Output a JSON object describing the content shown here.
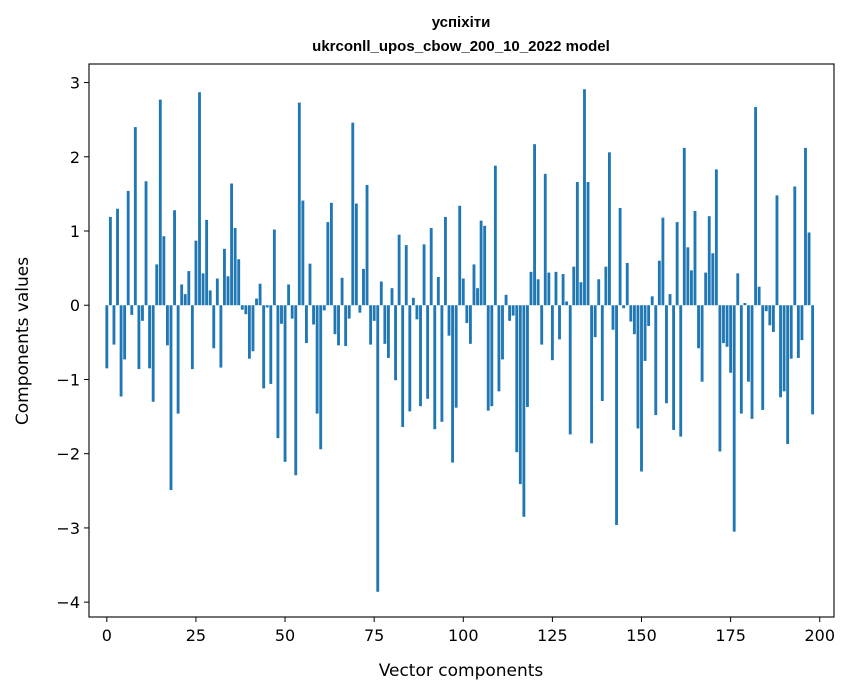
{
  "chart_data": {
    "type": "bar",
    "title": "успіхіти",
    "subtitle": "ukrconll_upos_cbow_200_10_2022 model",
    "xlabel": "Vector components",
    "ylabel": "Components values",
    "xlim": [
      -5,
      204
    ],
    "ylim": [
      -4.2,
      3.25
    ],
    "xticks": [
      0,
      25,
      50,
      75,
      100,
      125,
      150,
      175,
      200
    ],
    "xtick_labels": [
      "0",
      "25",
      "50",
      "75",
      "100",
      "125",
      "150",
      "175",
      "200"
    ],
    "yticks": [
      3,
      2,
      1,
      0,
      -1,
      -2,
      -3,
      -4
    ],
    "ytick_labels": [
      "3",
      "2",
      "1",
      "0",
      "−1",
      "−2",
      "−3",
      "−4"
    ],
    "grid": false,
    "bar_color": "#1f77b4",
    "values": [
      -0.85,
      1.19,
      -0.53,
      1.3,
      -1.23,
      -0.73,
      1.54,
      -0.13,
      2.4,
      -0.86,
      -0.21,
      1.67,
      -0.85,
      -1.3,
      0.55,
      2.77,
      0.93,
      -0.54,
      -2.49,
      1.28,
      -1.46,
      0.28,
      0.15,
      0.46,
      -0.86,
      0.87,
      2.87,
      0.43,
      1.15,
      0.2,
      -0.58,
      0.36,
      -0.84,
      0.76,
      0.39,
      1.64,
      1.04,
      0.62,
      -0.06,
      -0.12,
      -0.72,
      -0.62,
      0.09,
      0.29,
      -1.12,
      -0.03,
      -1.06,
      1.02,
      -1.79,
      -0.25,
      -2.11,
      0.28,
      -0.18,
      -2.29,
      2.73,
      1.41,
      -0.51,
      0.56,
      -0.26,
      -1.46,
      -1.94,
      -0.07,
      1.12,
      1.38,
      -0.39,
      -0.54,
      0.37,
      -0.55,
      -0.18,
      2.46,
      1.37,
      -0.1,
      0.49,
      1.62,
      -0.53,
      -0.21,
      -3.86,
      0.32,
      -0.52,
      -0.71,
      0.23,
      -1.01,
      0.95,
      -1.64,
      0.81,
      -1.43,
      0.1,
      -0.19,
      -1.36,
      0.82,
      -1.26,
      1.04,
      -1.67,
      0.38,
      -1.57,
      1.19,
      -0.41,
      -2.12,
      -1.38,
      1.34,
      0.36,
      -0.24,
      -0.52,
      0.55,
      0.23,
      1.14,
      1.07,
      -1.42,
      -1.36,
      1.88,
      -1.16,
      -0.73,
      0.14,
      -0.21,
      -0.14,
      -1.98,
      -2.41,
      -2.85,
      -1.37,
      0.45,
      2.17,
      0.35,
      -0.53,
      1.77,
      0.44,
      -0.74,
      0.45,
      -0.46,
      0.42,
      0.05,
      -1.74,
      0.52,
      1.66,
      0.31,
      2.91,
      1.66,
      -1.86,
      -0.43,
      0.35,
      -1.29,
      0.52,
      2.06,
      -0.33,
      -2.96,
      1.31,
      -0.04,
      0.57,
      -0.22,
      -0.39,
      -1.66,
      -2.24,
      -0.75,
      -0.28,
      0.12,
      -1.48,
      0.6,
      1.18,
      -1.32,
      0.15,
      -1.68,
      1.12,
      -1.77,
      2.12,
      0.78,
      0.47,
      1.27,
      -0.58,
      -1.03,
      0.44,
      1.2,
      0.7,
      1.83,
      -1.97,
      -0.51,
      -0.56,
      -0.91,
      -3.05,
      0.43,
      -1.46,
      0.03,
      -1.03,
      -1.53,
      2.67,
      0.25,
      -1.41,
      -0.08,
      -0.27,
      -0.36,
      1.48,
      -1.24,
      -1.16,
      -1.87,
      -0.72,
      1.6,
      -0.71,
      -0.47,
      2.12,
      0.98,
      -1.47
    ]
  }
}
